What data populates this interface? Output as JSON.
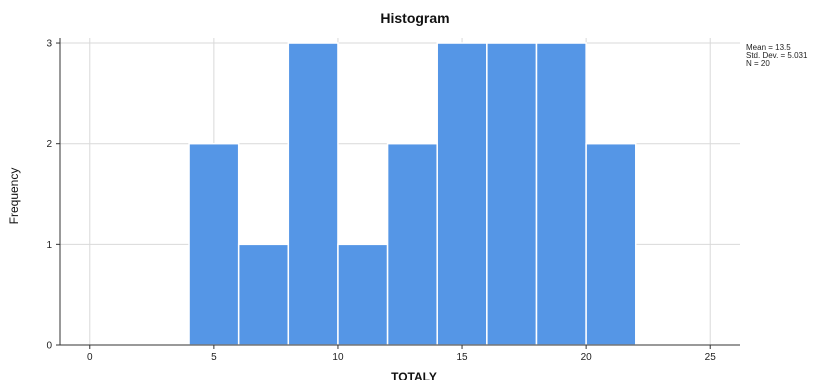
{
  "caption_fragment": "",
  "chart_data": {
    "type": "histogram",
    "title": "Histogram",
    "xlabel": "TOTALY",
    "ylabel": "Frequency",
    "xlim": [
      -1.2,
      26.2
    ],
    "ylim": [
      0,
      3.05
    ],
    "x_ticks": [
      0,
      5,
      10,
      15,
      20,
      25
    ],
    "y_ticks": [
      0,
      1,
      2,
      3
    ],
    "bins": [
      {
        "start": 4,
        "end": 6,
        "count": 2
      },
      {
        "start": 6,
        "end": 8,
        "count": 1
      },
      {
        "start": 8,
        "end": 10,
        "count": 3
      },
      {
        "start": 10,
        "end": 12,
        "count": 1
      },
      {
        "start": 12,
        "end": 14,
        "count": 2
      },
      {
        "start": 14,
        "end": 16,
        "count": 3
      },
      {
        "start": 16,
        "end": 18,
        "count": 3
      },
      {
        "start": 18,
        "end": 20,
        "count": 3
      },
      {
        "start": 20,
        "end": 22,
        "count": 2
      }
    ],
    "stats": [
      "Mean = 13.5",
      "Std. Dev. = 5.031",
      "N = 20"
    ],
    "grid": true,
    "colors": {
      "bar": "#5596e6",
      "bar_edge": "#ffffff",
      "grid": "#d9d9d9",
      "axis": "#333333"
    }
  }
}
